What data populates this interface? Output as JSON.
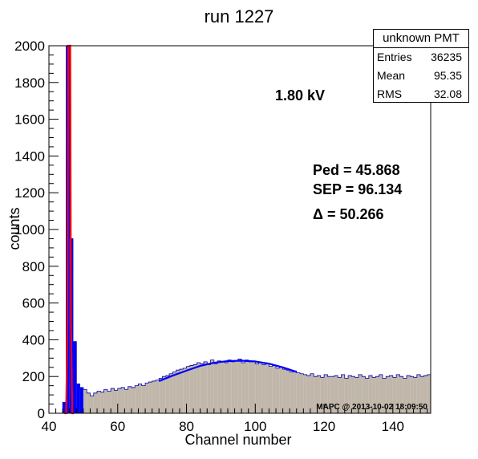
{
  "chart_data": {
    "type": "histogram",
    "title": "run 1227",
    "xlabel": "Channel number",
    "ylabel": "counts",
    "xlim": [
      40,
      151
    ],
    "ylim": [
      0,
      2000
    ],
    "x_ticks": [
      40,
      60,
      80,
      100,
      120,
      140
    ],
    "y_ticks": [
      0,
      200,
      400,
      600,
      800,
      1000,
      1200,
      1400,
      1600,
      1800,
      2000
    ],
    "x_tick_labels": [
      "40",
      "60",
      "80",
      "100",
      "120",
      "140"
    ],
    "y_tick_labels": [
      "0",
      "200",
      "400",
      "600",
      "800",
      "1000",
      "1200",
      "1400",
      "1600",
      "1800",
      "2000"
    ],
    "bin_width": 1,
    "bins_x": [
      44,
      45,
      46,
      47,
      48,
      49,
      50,
      51,
      52,
      53,
      54,
      55,
      56,
      57,
      58,
      59,
      60,
      61,
      62,
      63,
      64,
      65,
      66,
      67,
      68,
      69,
      70,
      71,
      72,
      73,
      74,
      75,
      76,
      77,
      78,
      79,
      80,
      81,
      82,
      83,
      84,
      85,
      86,
      87,
      88,
      89,
      90,
      91,
      92,
      93,
      94,
      95,
      96,
      97,
      98,
      99,
      100,
      101,
      102,
      103,
      104,
      105,
      106,
      107,
      108,
      109,
      110,
      111,
      112,
      113,
      114,
      115,
      116,
      117,
      118,
      119,
      120,
      121,
      122,
      123,
      124,
      125,
      126,
      127,
      128,
      129,
      130,
      131,
      132,
      133,
      134,
      135,
      136,
      137,
      138,
      139,
      140,
      141,
      142,
      143,
      144,
      145,
      146,
      147,
      148,
      149,
      150
    ],
    "bins_y": [
      60,
      2000,
      950,
      390,
      160,
      140,
      130,
      110,
      95,
      110,
      120,
      115,
      130,
      120,
      135,
      125,
      135,
      140,
      130,
      145,
      140,
      150,
      160,
      150,
      165,
      170,
      175,
      180,
      190,
      200,
      205,
      215,
      225,
      235,
      240,
      245,
      255,
      260,
      265,
      275,
      270,
      280,
      265,
      290,
      270,
      285,
      280,
      275,
      290,
      280,
      285,
      295,
      275,
      290,
      280,
      285,
      270,
      275,
      265,
      270,
      255,
      260,
      245,
      250,
      240,
      235,
      225,
      230,
      220,
      215,
      210,
      205,
      215,
      200,
      205,
      195,
      210,
      200,
      200,
      205,
      195,
      210,
      190,
      205,
      200,
      195,
      210,
      200,
      190,
      205,
      195,
      200,
      210,
      190,
      200,
      205,
      195,
      210,
      200,
      190,
      205,
      200,
      195,
      210,
      200,
      205,
      210
    ],
    "fill_color": "#c0b6aa",
    "ped_bins_x": [
      44,
      45,
      46,
      47,
      48,
      49
    ],
    "ped_bins_y": [
      60,
      2000,
      950,
      390,
      160,
      140
    ],
    "ped_color": "#0000ff",
    "fits": [
      {
        "color": "#ff0000",
        "x": [
          44.5,
          45.0,
          45.4,
          45.6,
          45.8,
          45.868,
          46.0,
          46.2,
          46.4,
          46.8,
          47.2
        ],
        "y": [
          0,
          0,
          500,
          2000,
          2000,
          2000,
          2000,
          2000,
          500,
          0,
          0
        ]
      },
      {
        "color": "#0000ff",
        "x": [
          72,
          76,
          80,
          84,
          88,
          92,
          96.134,
          100,
          104,
          108,
          112
        ],
        "y": [
          175,
          205,
          232,
          258,
          275,
          284,
          286,
          282,
          270,
          250,
          225
        ]
      }
    ],
    "annotations": {
      "hv": "1.80 kV",
      "ped": "Ped = 45.868",
      "sep": "SEP = 96.134",
      "delta": "Δ = 50.266",
      "footer": "MAPC @ 2013-10-02 18:09:50"
    },
    "stats": {
      "title": "unknown PMT",
      "rows": [
        {
          "label": "Entries",
          "value": "36235"
        },
        {
          "label": "Mean",
          "value": "95.35"
        },
        {
          "label": "RMS",
          "value": "32.08"
        }
      ]
    },
    "grid": false,
    "legend": "top-right"
  }
}
